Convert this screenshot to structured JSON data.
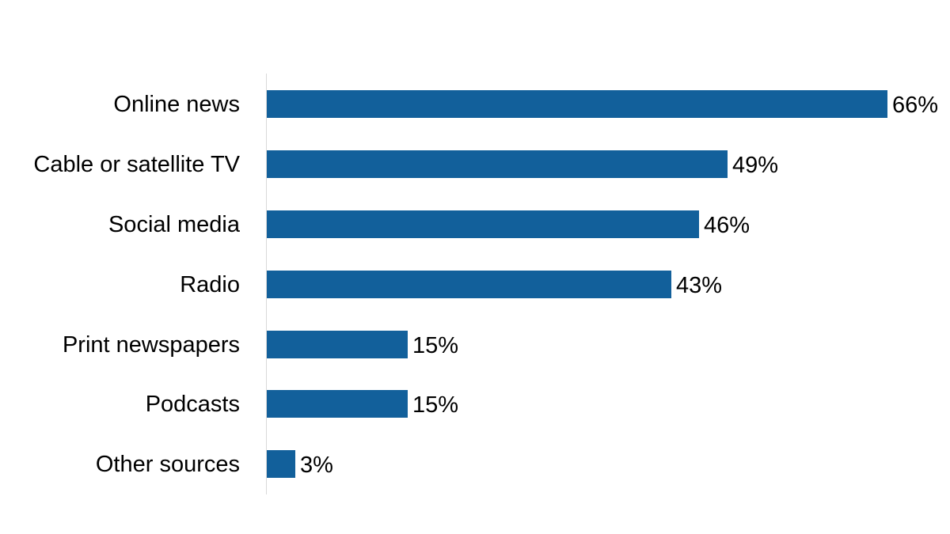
{
  "chart_data": {
    "type": "bar",
    "orientation": "horizontal",
    "title": "",
    "xlabel": "",
    "ylabel": "",
    "categories": [
      "Online news",
      "Cable or satellite TV",
      "Social media",
      "Radio",
      "Print newspapers",
      "Podcasts",
      "Other sources"
    ],
    "values": [
      66,
      49,
      46,
      43,
      15,
      15,
      3
    ],
    "value_labels": [
      "66%",
      "49%",
      "46%",
      "43%",
      "15%",
      "15%",
      "3%"
    ],
    "unit": "%",
    "xlim": [
      0,
      66
    ],
    "grid": false,
    "legend": null,
    "bar_color": "#12609B",
    "axis_color": "#D9D9D9"
  },
  "rows": [
    {
      "label": "Online news",
      "value": 66,
      "value_label": "66%"
    },
    {
      "label": "Cable or satellite TV",
      "value": 49,
      "value_label": "49%"
    },
    {
      "label": "Social media",
      "value": 46,
      "value_label": "46%"
    },
    {
      "label": "Radio",
      "value": 43,
      "value_label": "43%"
    },
    {
      "label": "Print newspapers",
      "value": 15,
      "value_label": "15%"
    },
    {
      "label": "Podcasts",
      "value": 15,
      "value_label": "15%"
    },
    {
      "label": "Other sources",
      "value": 3,
      "value_label": "3%"
    }
  ]
}
